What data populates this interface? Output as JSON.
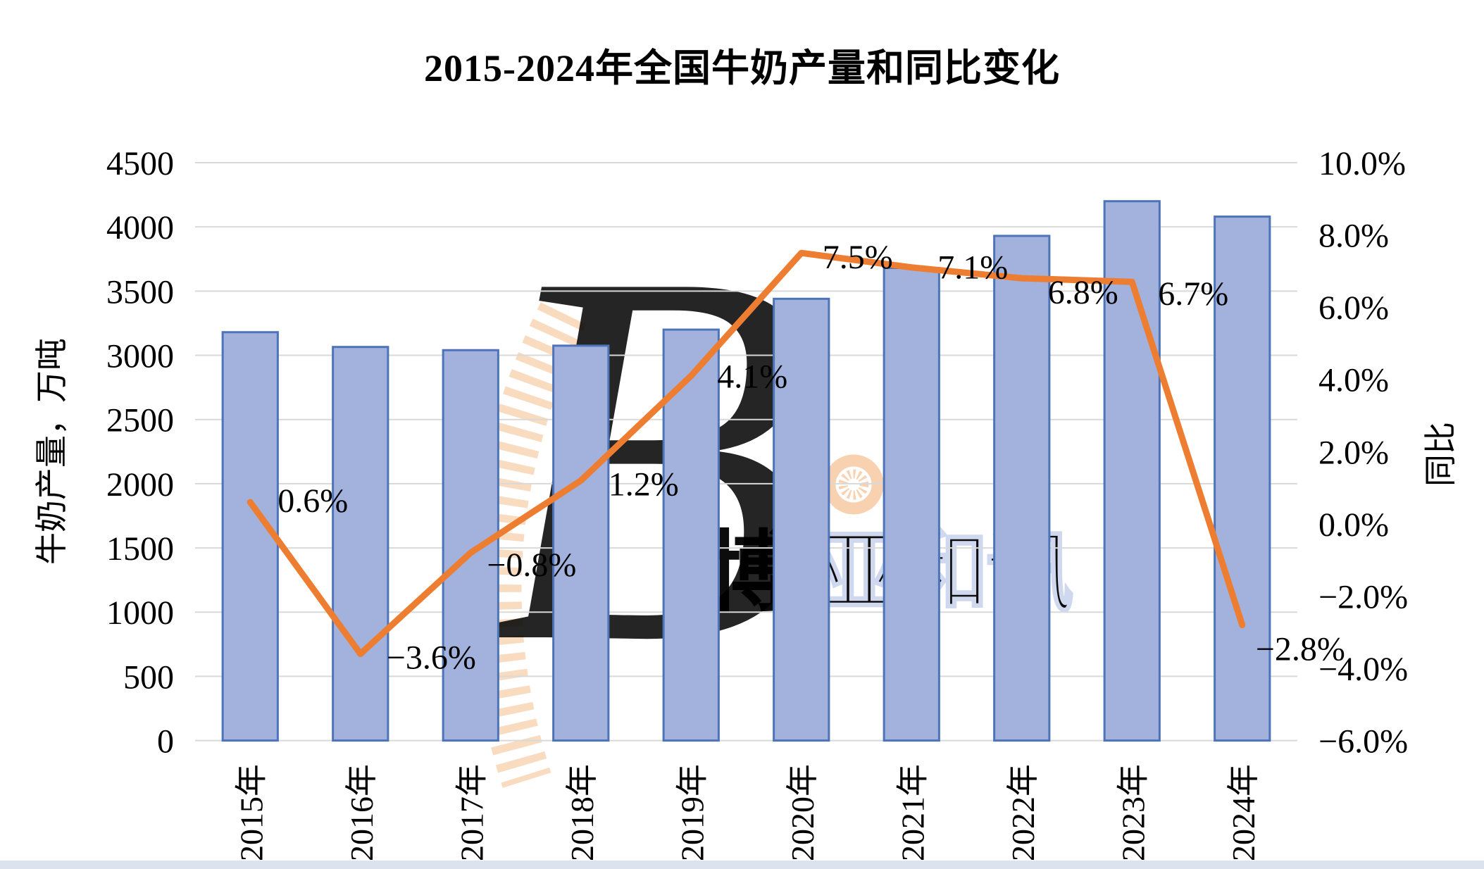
{
  "page": {
    "background": "#ffffff",
    "bottom_strip_color": "#DCE3EE"
  },
  "chart_data": {
    "type": "bar+line",
    "title": "2015-2024年全国牛奶产量和同比变化",
    "categories": [
      "2015年",
      "2016年",
      "2017年",
      "2018年",
      "2019年",
      "2020年",
      "2021年",
      "2022年",
      "2023年",
      "2024年"
    ],
    "series": [
      {
        "name": "牛奶产量",
        "type": "bar",
        "axis": "left",
        "values": [
          3180,
          3065,
          3040,
          3075,
          3200,
          3440,
          3680,
          3930,
          4200,
          4080
        ],
        "fill": "#A2B2DC",
        "stroke": "#4D74B8"
      },
      {
        "name": "同比",
        "type": "line",
        "axis": "right",
        "values_pct": [
          0.6,
          -3.6,
          -0.8,
          1.2,
          4.1,
          7.5,
          7.1,
          6.8,
          6.7,
          -2.8
        ],
        "point_labels": [
          "0.6%",
          "−3.6%",
          "−0.8%",
          "1.2%",
          "4.1%",
          "7.5%",
          "7.1%",
          "6.8%",
          "6.7%",
          "−2.8%"
        ],
        "color": "#ED7D31"
      }
    ],
    "left_axis": {
      "title": "牛奶产量，万吨",
      "min": 0,
      "max": 4500,
      "step": 500,
      "ticks": [
        "4500",
        "4000",
        "3500",
        "3000",
        "2500",
        "2000",
        "1500",
        "1000",
        "500",
        "0"
      ]
    },
    "right_axis": {
      "title": "同比",
      "min": -6,
      "max": 10,
      "step": 2,
      "ticks": [
        "10.0%",
        "8.0%",
        "6.0%",
        "4.0%",
        "2.0%",
        "0.0%",
        "−2.0%",
        "−4.0%",
        "−6.0%"
      ]
    },
    "gridlines": {
      "orientation": "horizontal",
      "color": "#D9D9D9"
    },
    "legend_position": "none"
  },
  "watermark": {
    "letter": "B",
    "chars": [
      "博",
      "亚",
      "和",
      "讯"
    ],
    "blue": "#CDD6EE",
    "pale_blue_fill": "#EDF0F8",
    "orange": "#F8D2B0"
  }
}
